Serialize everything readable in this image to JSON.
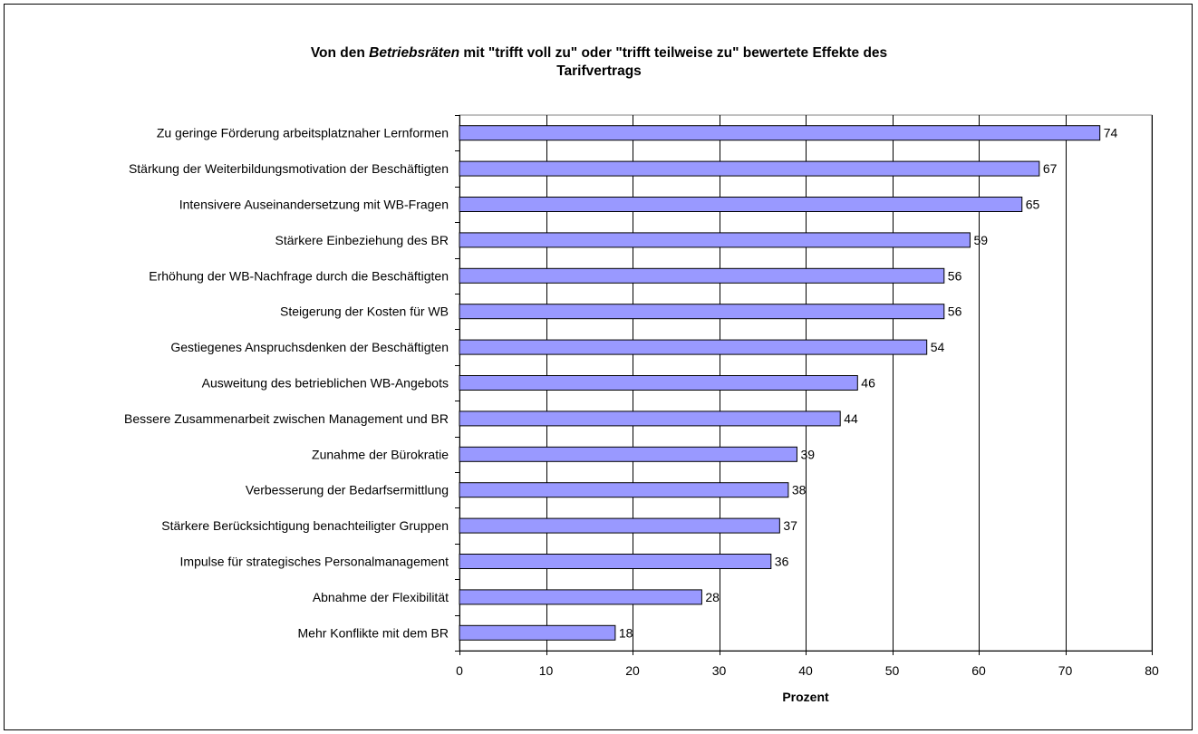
{
  "chart_data": {
    "type": "bar",
    "orientation": "horizontal",
    "title_parts": [
      "Von den ",
      "Betriebsräten",
      " mit \"trifft voll zu\" oder \"trifft  teilweise zu\" bewertete Effekte des",
      "Tarifvertrags"
    ],
    "xlabel": "Prozent",
    "ylabel": "",
    "xlim": [
      0,
      80
    ],
    "xticks": [
      0,
      10,
      20,
      30,
      40,
      50,
      60,
      70,
      80
    ],
    "grid": true,
    "legend": "none",
    "bar_color": "#9999ff",
    "categories": [
      "Zu geringe Förderung arbeitsplatznaher Lernformen",
      "Stärkung der Weiterbildungsmotivation der Beschäftigten",
      "Intensivere Auseinandersetzung mit WB-Fragen",
      "Stärkere Einbeziehung des BR",
      "Erhöhung der WB-Nachfrage durch die Beschäftigten",
      "Steigerung der Kosten für WB",
      "Gestiegenes Anspruchsdenken der Beschäftigten",
      "Ausweitung des betrieblichen WB-Angebots",
      "Bessere Zusammenarbeit zwischen Management und BR",
      "Zunahme der Bürokratie",
      "Verbesserung der Bedarfsermittlung",
      "Stärkere Berücksichtigung benachteiligter Gruppen",
      "Impulse für strategisches Personalmanagement",
      "Abnahme der Flexibilität",
      "Mehr Konflikte mit dem BR"
    ],
    "values": [
      74,
      67,
      65,
      59,
      56,
      56,
      54,
      46,
      44,
      39,
      38,
      37,
      36,
      28,
      18
    ]
  }
}
